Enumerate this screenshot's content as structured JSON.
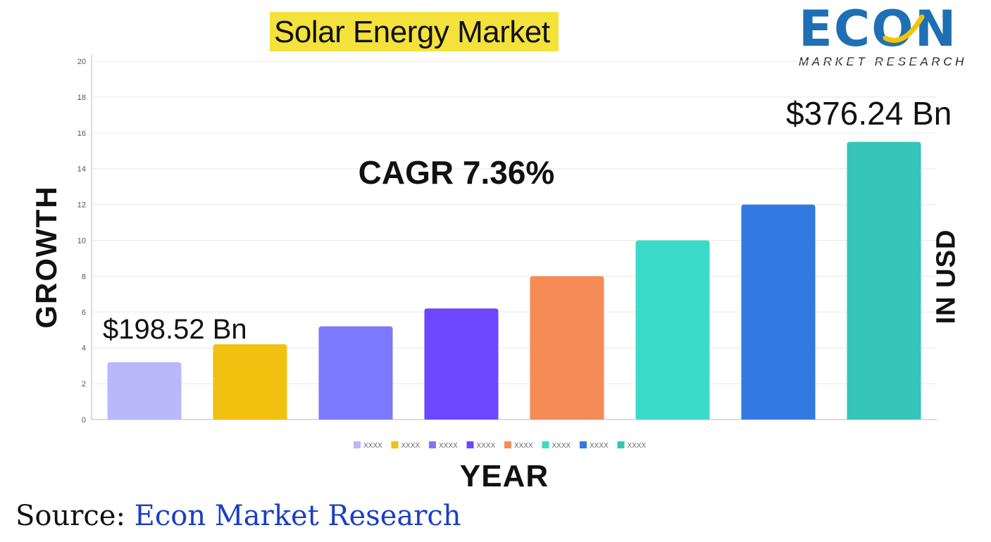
{
  "title": "Solar Energy Market",
  "logo": {
    "word": "ECON",
    "subtitle": "MARKET RESEARCH",
    "colors": {
      "primary": "#1f6fb4",
      "accent": "#f2c400"
    }
  },
  "annotations": {
    "cagr": "CAGR 7.36%",
    "start_value": "$198.52 Bn",
    "end_value": "$376.24 Bn"
  },
  "axis_titles": {
    "y": "GROWTH",
    "y_right": "IN USD",
    "x": "YEAR"
  },
  "source": {
    "label": "Source:",
    "name": "Econ Market Research"
  },
  "chart_data": {
    "type": "bar",
    "title": "Solar Energy Market",
    "xlabel": "YEAR",
    "ylabel": "GROWTH",
    "ylim": [
      0,
      20
    ],
    "yticks": [
      0,
      2,
      4,
      6,
      8,
      10,
      12,
      14,
      16,
      18,
      20
    ],
    "grid": true,
    "legend_position": "bottom",
    "categories": [
      "XXXX",
      "XXXX",
      "XXXX",
      "XXXX",
      "XXXX",
      "XXXX",
      "XXXX",
      "XXXX"
    ],
    "values": [
      3.2,
      4.2,
      5.2,
      6.2,
      8,
      10,
      12,
      15.5
    ],
    "colors": [
      "#b9b8fd",
      "#f2c00f",
      "#7b79fd",
      "#6c47fd",
      "#f58b57",
      "#3cdbc9",
      "#3379e2",
      "#36c5b8"
    ]
  }
}
